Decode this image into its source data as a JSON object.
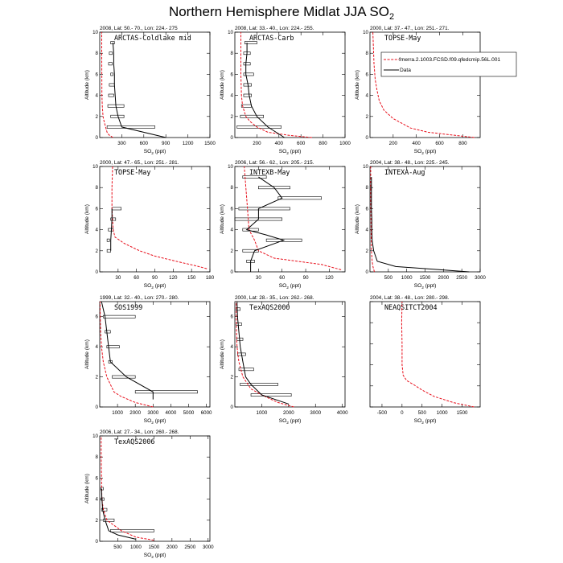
{
  "figure": {
    "title_main": "Northern Hemisphere Midlat JJA SO",
    "title_sub": "2",
    "y_axis_label": "Altitude (km)",
    "x_axis_label_main": "SO",
    "x_axis_label_sub": "2",
    "x_axis_label_unit": " (ppt)",
    "legend": {
      "model_label": "fmerra.2.1003.FCSD.f09.qfedcmip.56L.001",
      "data_label": "Data"
    },
    "colors": {
      "model": "#e8101c",
      "data": "#000000"
    }
  },
  "chart_data": [
    {
      "type": "line",
      "header": "2008, Lat:  50.- 70., Lon: 224.- 275",
      "campaign": "ARCTAS-Coldlake mid",
      "xlim": [
        0,
        1500
      ],
      "xticks": [
        300,
        600,
        900,
        1200,
        1500
      ],
      "ylim": [
        0,
        10
      ],
      "yticks": [
        0,
        2,
        4,
        6,
        8,
        10
      ],
      "model": [
        [
          180,
          0
        ],
        [
          125,
          0.25
        ],
        [
          100,
          0.5
        ],
        [
          80,
          1.0
        ],
        [
          60,
          1.5
        ],
        [
          45,
          2
        ],
        [
          35,
          3
        ],
        [
          30,
          4
        ],
        [
          28,
          6
        ],
        [
          27,
          8
        ],
        [
          27,
          10
        ]
      ],
      "data": [
        [
          900,
          0
        ],
        [
          300,
          1
        ],
        [
          250,
          2
        ],
        [
          220,
          3
        ],
        [
          210,
          4
        ],
        [
          200,
          5
        ],
        [
          200,
          6
        ],
        [
          190,
          7
        ],
        [
          190,
          8
        ],
        [
          180,
          9
        ]
      ],
      "boxes": [
        [
          100,
          750,
          1
        ],
        [
          150,
          330,
          2
        ],
        [
          110,
          330,
          3
        ],
        [
          120,
          190,
          4
        ],
        [
          130,
          200,
          5
        ],
        [
          150,
          180,
          6
        ],
        [
          120,
          170,
          7
        ],
        [
          130,
          170,
          8
        ],
        [
          150,
          200,
          9
        ]
      ]
    },
    {
      "type": "line",
      "header": "2008, Lat:  33.- 40., Lon: 224.- 255.",
      "campaign": "ARCTAS-Carb",
      "xlim": [
        0,
        1000
      ],
      "xticks": [
        200,
        400,
        600,
        800,
        1000
      ],
      "ylim": [
        0,
        10
      ],
      "yticks": [
        0,
        2,
        4,
        6,
        8,
        10
      ],
      "model": [
        [
          700,
          0
        ],
        [
          500,
          0.2
        ],
        [
          300,
          0.5
        ],
        [
          200,
          1
        ],
        [
          140,
          1.5
        ],
        [
          100,
          2
        ],
        [
          70,
          3
        ],
        [
          60,
          4
        ],
        [
          55,
          6
        ],
        [
          55,
          8
        ],
        [
          55,
          10
        ]
      ],
      "data": [
        [
          450,
          0
        ],
        [
          300,
          1
        ],
        [
          200,
          2
        ],
        [
          150,
          3
        ],
        [
          130,
          4
        ],
        [
          120,
          5
        ],
        [
          100,
          6
        ],
        [
          100,
          7
        ],
        [
          110,
          8
        ],
        [
          110,
          9
        ]
      ],
      "boxes": [
        [
          20,
          420,
          1
        ],
        [
          50,
          260,
          2
        ],
        [
          60,
          150,
          3
        ],
        [
          80,
          150,
          4
        ],
        [
          80,
          150,
          5
        ],
        [
          80,
          170,
          6
        ],
        [
          80,
          140,
          7
        ],
        [
          80,
          140,
          8
        ],
        [
          90,
          200,
          9
        ]
      ]
    },
    {
      "type": "line",
      "header": "2000, Lat:  37.- 47., Lon: 251.- 271.",
      "campaign": "TOPSE-May",
      "xlim": [
        0,
        950
      ],
      "xticks": [
        200,
        400,
        600,
        800
      ],
      "ylim": [
        0,
        10
      ],
      "yticks": [
        0,
        2,
        4,
        6,
        8,
        10
      ],
      "model": [
        [
          900,
          0
        ],
        [
          700,
          0.25
        ],
        [
          500,
          0.5
        ],
        [
          350,
          0.9
        ],
        [
          200,
          1.8
        ],
        [
          120,
          2.6
        ],
        [
          80,
          3.5
        ],
        [
          60,
          4.5
        ],
        [
          45,
          5.5
        ],
        [
          35,
          7
        ],
        [
          25,
          10
        ]
      ],
      "data": [],
      "boxes": [],
      "legend": true
    },
    {
      "type": "line",
      "header": "2000, Lat:  47.- 65., Lon: 251.- 281.",
      "campaign": "TOPSE-May",
      "xlim": [
        0,
        180
      ],
      "xticks": [
        30,
        60,
        90,
        120,
        150,
        180
      ],
      "ylim": [
        0,
        10
      ],
      "yticks": [
        0,
        2,
        4,
        6,
        8,
        10
      ],
      "model": [
        [
          175,
          0.3
        ],
        [
          155,
          0.6
        ],
        [
          125,
          1
        ],
        [
          90,
          1.5
        ],
        [
          65,
          2
        ],
        [
          40,
          2.7
        ],
        [
          25,
          3.3
        ],
        [
          22,
          4
        ],
        [
          20,
          6
        ],
        [
          20,
          8
        ],
        [
          21,
          10
        ]
      ],
      "data": [
        [
          18,
          2
        ],
        [
          18,
          3
        ],
        [
          19,
          4
        ],
        [
          20,
          5
        ],
        [
          20,
          6
        ]
      ],
      "boxes": [
        [
          12,
          18,
          2
        ],
        [
          12,
          16,
          3
        ],
        [
          14,
          22,
          4
        ],
        [
          18,
          26,
          5
        ],
        [
          20,
          35,
          6
        ]
      ]
    },
    {
      "type": "line",
      "header": "2006, Lat:  56.- 62., Lon: 205.- 215.",
      "campaign": "INTEXB-May",
      "xlim": [
        0,
        140
      ],
      "xticks": [
        30,
        60,
        90,
        120
      ],
      "ylim": [
        0,
        10
      ],
      "yticks": [
        0,
        2,
        4,
        6,
        8,
        10
      ],
      "model": [
        [
          135,
          0.2
        ],
        [
          110,
          0.7
        ],
        [
          80,
          1
        ],
        [
          50,
          1.3
        ],
        [
          30,
          2
        ],
        [
          25,
          3
        ],
        [
          18,
          4
        ],
        [
          16,
          6
        ],
        [
          14,
          8
        ],
        [
          12,
          10
        ]
      ],
      "data": [
        [
          20,
          0
        ],
        [
          20,
          1
        ],
        [
          25,
          2
        ],
        [
          62,
          3
        ],
        [
          40,
          3.5
        ],
        [
          15,
          4
        ],
        [
          30,
          5
        ],
        [
          30,
          6
        ],
        [
          60,
          7
        ],
        [
          50,
          8
        ],
        [
          30,
          9
        ]
      ],
      "boxes": [
        [
          15,
          25,
          1
        ],
        [
          10,
          30,
          2
        ],
        [
          40,
          85,
          3
        ],
        [
          10,
          30,
          4
        ],
        [
          0,
          60,
          5
        ],
        [
          5,
          70,
          6
        ],
        [
          55,
          110,
          7
        ],
        [
          30,
          70,
          8
        ],
        [
          10,
          40,
          9
        ]
      ]
    },
    {
      "type": "line",
      "header": "2004, Lat:  38.- 48., Lon: 225.- 245.",
      "campaign": "INTEXA-Aug",
      "xlim": [
        0,
        3000
      ],
      "xticks": [
        500,
        1000,
        1500,
        2000,
        2500,
        3000
      ],
      "ylim": [
        0,
        10
      ],
      "yticks": [
        0,
        2,
        4,
        6,
        8,
        10
      ],
      "model": [
        [
          120,
          0
        ],
        [
          80,
          0.5
        ],
        [
          60,
          1
        ],
        [
          40,
          2
        ],
        [
          30,
          4
        ],
        [
          25,
          6
        ],
        [
          20,
          8
        ],
        [
          20,
          10
        ]
      ],
      "data": [
        [
          2700,
          0
        ],
        [
          700,
          0.5
        ],
        [
          200,
          1
        ],
        [
          100,
          2
        ],
        [
          60,
          3
        ],
        [
          50,
          4
        ],
        [
          50,
          5
        ],
        [
          40,
          6
        ],
        [
          40,
          7
        ],
        [
          40,
          8
        ],
        [
          40,
          9
        ]
      ],
      "boxes": []
    },
    {
      "type": "line",
      "header": "1999, Lat:  32.- 40., Lon: 270.- 280.",
      "campaign": "SOS1999",
      "xlim": [
        0,
        6200
      ],
      "xticks": [
        1000,
        2000,
        3000,
        4000,
        5000,
        6000
      ],
      "ylim": [
        0,
        7
      ],
      "yticks": [
        0,
        2,
        4,
        6
      ],
      "model": [
        [
          3000,
          0
        ],
        [
          2000,
          0.3
        ],
        [
          1200,
          0.7
        ],
        [
          800,
          1
        ],
        [
          400,
          2
        ],
        [
          200,
          3
        ],
        [
          100,
          4
        ],
        [
          50,
          5
        ],
        [
          30,
          6
        ],
        [
          20,
          7
        ]
      ],
      "data": [
        [
          3000,
          0.5
        ],
        [
          3000,
          1
        ],
        [
          1500,
          2
        ],
        [
          600,
          3
        ],
        [
          500,
          4
        ],
        [
          400,
          5
        ],
        [
          300,
          6
        ],
        [
          100,
          7
        ]
      ],
      "boxes": [
        [
          2000,
          5500,
          1
        ],
        [
          700,
          2000,
          2
        ],
        [
          500,
          700,
          3
        ],
        [
          400,
          1100,
          4
        ],
        [
          300,
          600,
          5
        ],
        [
          200,
          2000,
          6
        ]
      ]
    },
    {
      "type": "line",
      "header": "2000, Lat:  28.- 35., Lon: 262.- 268.",
      "campaign": "TexAQS2000",
      "xlim": [
        0,
        4100
      ],
      "xticks": [
        1000,
        2000,
        3000,
        4000
      ],
      "ylim": [
        0,
        7
      ],
      "yticks": [
        0,
        2,
        4,
        6
      ],
      "model": [
        [
          2200,
          0
        ],
        [
          1600,
          0.3
        ],
        [
          1000,
          0.8
        ],
        [
          600,
          1.2
        ],
        [
          300,
          2
        ],
        [
          150,
          3
        ],
        [
          80,
          4
        ],
        [
          60,
          5
        ],
        [
          50,
          6
        ],
        [
          50,
          7
        ]
      ],
      "data": [
        [
          2000,
          0.2
        ],
        [
          1000,
          0.8
        ],
        [
          600,
          1.5
        ],
        [
          400,
          2
        ],
        [
          300,
          3
        ],
        [
          200,
          4
        ],
        [
          150,
          5
        ],
        [
          100,
          6
        ],
        [
          80,
          7
        ]
      ],
      "boxes": [
        [
          600,
          2100,
          0.8
        ],
        [
          200,
          1600,
          1.5
        ],
        [
          150,
          700,
          2.5
        ],
        [
          100,
          400,
          3.5
        ],
        [
          80,
          300,
          4.5
        ],
        [
          50,
          250,
          5.5
        ],
        [
          50,
          200,
          6.5
        ]
      ]
    },
    {
      "type": "line",
      "header": "2004, Lat:  38.- 48., Lon: 280.- 298.",
      "campaign": "NEAQSITCT2004",
      "xlim": [
        -800,
        1950
      ],
      "xticks": [
        -500,
        0,
        500,
        1000,
        1500
      ],
      "ylim": [
        0,
        10
      ],
      "yticks": [
        0,
        2,
        4,
        6,
        8,
        10
      ],
      "model": [
        [
          1800,
          0
        ],
        [
          1300,
          0.4
        ],
        [
          800,
          1
        ],
        [
          500,
          1.6
        ],
        [
          300,
          2.1
        ],
        [
          120,
          2.5
        ],
        [
          30,
          3
        ],
        [
          0,
          4
        ],
        [
          0,
          6
        ],
        [
          -10,
          8
        ],
        [
          0,
          10
        ]
      ],
      "data": [],
      "boxes": [],
      "hide_y": true
    },
    {
      "type": "line",
      "header": "2006, Lat:  27.- 34., Lon: 260.- 268.",
      "campaign": "TexAQS2006",
      "xlim": [
        0,
        3050
      ],
      "xticks": [
        500,
        1000,
        1500,
        2000,
        2500,
        3000
      ],
      "ylim": [
        0,
        10
      ],
      "yticks": [
        0,
        2,
        4,
        6,
        8,
        10
      ],
      "model": [
        [
          1500,
          0.1
        ],
        [
          1000,
          0.4
        ],
        [
          600,
          1
        ],
        [
          200,
          2
        ],
        [
          100,
          3
        ],
        [
          60,
          4
        ],
        [
          50,
          6
        ],
        [
          40,
          8
        ],
        [
          40,
          10
        ]
      ],
      "data": [
        [
          1000,
          0.2
        ],
        [
          500,
          0.6
        ],
        [
          250,
          1
        ],
        [
          150,
          2
        ],
        [
          80,
          3
        ],
        [
          60,
          4
        ],
        [
          50,
          5
        ]
      ],
      "boxes": [
        [
          300,
          1500,
          1
        ],
        [
          100,
          400,
          2
        ],
        [
          50,
          200,
          3
        ],
        [
          40,
          120,
          4
        ],
        [
          30,
          100,
          5
        ]
      ]
    }
  ]
}
